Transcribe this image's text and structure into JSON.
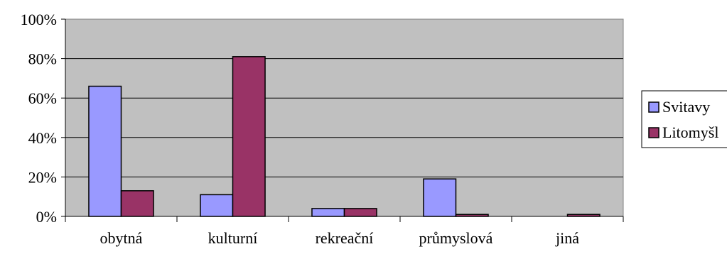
{
  "chart_data": {
    "type": "bar",
    "categories": [
      "obytná",
      "kulturní",
      "rekreační",
      "průmyslová",
      "jiná"
    ],
    "series": [
      {
        "name": "Svitavy",
        "color": "#9999ff",
        "values": [
          66,
          11,
          4,
          19,
          0
        ]
      },
      {
        "name": "Litomyšl",
        "color": "#993366",
        "values": [
          13,
          81,
          4,
          1,
          1
        ]
      }
    ],
    "y_ticks": [
      "0%",
      "20%",
      "40%",
      "60%",
      "80%",
      "100%"
    ],
    "ylim": [
      0,
      100
    ],
    "plot_background": "#c0c0c0",
    "grid": true,
    "legend_position": "right"
  }
}
